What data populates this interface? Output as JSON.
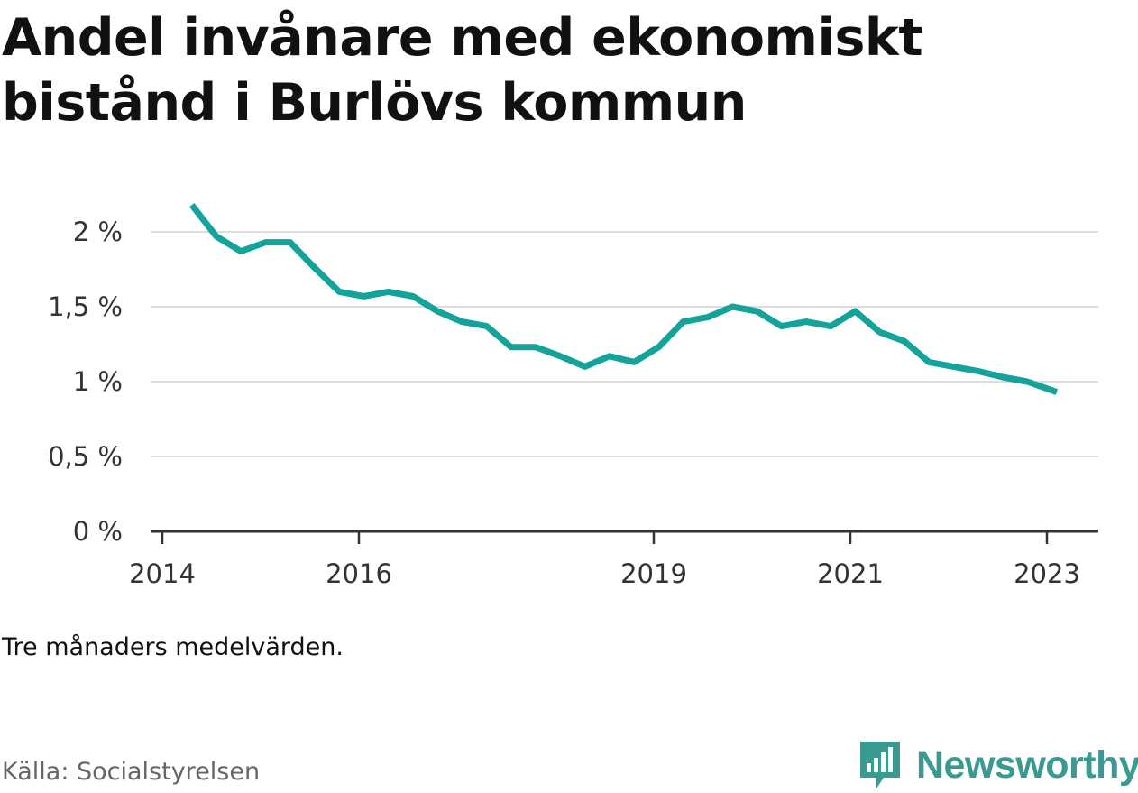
{
  "title": "Andel invånare med ekonomiskt bistånd i Burlövs kommun",
  "note": "Tre månaders medelvärden.",
  "source": "Källa: Socialstyrelsen",
  "brand": "Newsworthy",
  "colors": {
    "line": "#13a39a",
    "grid": "#dddddd",
    "axis": "#333333",
    "brand": "#3a9a92"
  },
  "chart_data": {
    "type": "line",
    "title": "Andel invånare med ekonomiskt bistånd i Burlövs kommun",
    "xlabel": "",
    "ylabel": "",
    "ylim": [
      0,
      2.2
    ],
    "yticks": [
      0,
      0.5,
      1,
      1.5,
      2
    ],
    "ytick_labels": [
      "0 %",
      "0,5 %",
      "1 %",
      "1,5 %",
      "2 %"
    ],
    "xlim": [
      2014,
      2023.5
    ],
    "xticks": [
      2014,
      2016,
      2019,
      2021,
      2023
    ],
    "xtick_labels": [
      "2014",
      "2016",
      "2019",
      "2021",
      "2023"
    ],
    "grid": true,
    "legend": "none",
    "series": [
      {
        "x": [
          2014.3,
          2014.55,
          2014.8,
          2015.05,
          2015.3,
          2015.55,
          2015.8,
          2016.05,
          2016.3,
          2016.55,
          2016.8,
          2017.05,
          2017.3,
          2017.55,
          2017.8,
          2018.05,
          2018.3,
          2018.55,
          2018.8,
          2019.05,
          2019.3,
          2019.55,
          2019.8,
          2020.05,
          2020.3,
          2020.55,
          2020.8,
          2021.05,
          2021.3,
          2021.55,
          2021.8,
          2022.05,
          2022.3,
          2022.55,
          2022.8,
          2023.1
        ],
        "y": [
          2.18,
          1.97,
          1.87,
          1.93,
          1.93,
          1.76,
          1.6,
          1.57,
          1.6,
          1.57,
          1.47,
          1.4,
          1.37,
          1.23,
          1.23,
          1.17,
          1.1,
          1.17,
          1.13,
          1.23,
          1.4,
          1.43,
          1.5,
          1.47,
          1.37,
          1.4,
          1.37,
          1.47,
          1.33,
          1.27,
          1.13,
          1.1,
          1.07,
          1.03,
          1.0,
          0.93
        ]
      }
    ]
  }
}
